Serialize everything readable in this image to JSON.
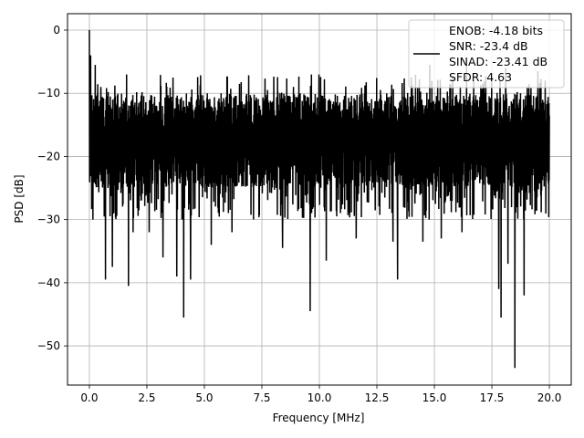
{
  "chart_data": {
    "type": "line",
    "title": "",
    "xlabel": "Frequency [MHz]",
    "ylabel": "PSD [dB]",
    "xlim": [
      -0.95,
      20.95
    ],
    "ylim": [
      -56.2,
      2.6
    ],
    "xticks": [
      0.0,
      2.5,
      5.0,
      7.5,
      10.0,
      12.5,
      15.0,
      17.5,
      20.0
    ],
    "xtick_labels": [
      "0.0",
      "2.5",
      "5.0",
      "7.5",
      "10.0",
      "12.5",
      "15.0",
      "17.5",
      "20.0"
    ],
    "yticks": [
      0,
      -10,
      -20,
      -30,
      -40,
      -50
    ],
    "ytick_labels": [
      "0",
      "−10",
      "−20",
      "−30",
      "−40",
      "−50"
    ],
    "grid": true,
    "legend_position": "top-right",
    "line_color": "#000000",
    "series": [
      {
        "name": "ENOB: -4.18 bits\nSNR: -23.4 dB\nSINAD: -23.41 dB\nSFDR: 4.63",
        "name_lines": [
          "ENOB: -4.18 bits",
          "SNR: -23.4 dB",
          "SINAD: -23.41 dB",
          "SFDR: 4.63"
        ],
        "x_range": [
          0,
          20
        ],
        "band_upper_db": -10,
        "band_lower_db": -25,
        "peaks": [
          {
            "x": 0.0,
            "y": 0
          },
          {
            "x": 0.02,
            "y": -14
          },
          {
            "x": 0.05,
            "y": -4
          },
          {
            "x": 0.15,
            "y": -30
          },
          {
            "x": 0.25,
            "y": -5.5
          },
          {
            "x": 0.5,
            "y": -9
          },
          {
            "x": 0.7,
            "y": -39.5
          },
          {
            "x": 1.0,
            "y": -37.5
          },
          {
            "x": 1.7,
            "y": -40.5
          },
          {
            "x": 1.9,
            "y": -32
          },
          {
            "x": 2.6,
            "y": -32
          },
          {
            "x": 3.2,
            "y": -36
          },
          {
            "x": 3.8,
            "y": -39
          },
          {
            "x": 4.1,
            "y": -45.5
          },
          {
            "x": 4.4,
            "y": -39.5
          },
          {
            "x": 5.3,
            "y": -34
          },
          {
            "x": 6.2,
            "y": -32
          },
          {
            "x": 8.4,
            "y": -34.5
          },
          {
            "x": 9.6,
            "y": -44.5
          },
          {
            "x": 10.3,
            "y": -36.5
          },
          {
            "x": 11.6,
            "y": -33
          },
          {
            "x": 13.2,
            "y": -33.5
          },
          {
            "x": 13.4,
            "y": -39.5
          },
          {
            "x": 14.5,
            "y": -33.5
          },
          {
            "x": 14.8,
            "y": -38.5
          },
          {
            "x": 15.3,
            "y": -33
          },
          {
            "x": 16.2,
            "y": -32
          },
          {
            "x": 17.8,
            "y": -41
          },
          {
            "x": 17.9,
            "y": -45.5
          },
          {
            "x": 18.2,
            "y": -37
          },
          {
            "x": 18.5,
            "y": -53.5
          },
          {
            "x": 18.9,
            "y": -42
          },
          {
            "x": 14.8,
            "y": -5.5
          },
          {
            "x": 16.4,
            "y": -5.5
          },
          {
            "x": 18.1,
            "y": -6
          },
          {
            "x": 19.5,
            "y": -6.5
          }
        ]
      }
    ]
  }
}
